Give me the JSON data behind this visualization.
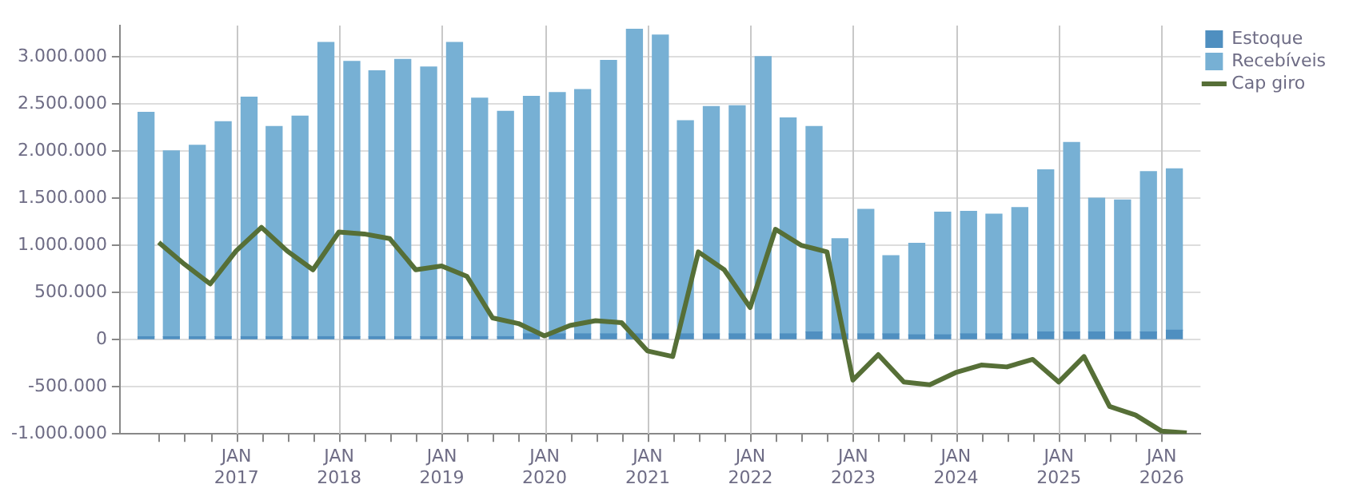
{
  "chart_data": {
    "type": "bar",
    "stacked": true,
    "legend": "top right",
    "grid": true,
    "marker": "none",
    "line_style": "solid",
    "x": [
      "2016-02-15",
      "2016-05-15",
      "2016-08-15",
      "2016-11-15",
      "2017-02-15",
      "2017-05-15",
      "2017-08-15",
      "2017-11-15",
      "2018-02-15",
      "2018-05-15",
      "2018-08-15",
      "2018-11-15",
      "2019-02-15",
      "2019-05-15",
      "2019-08-15",
      "2019-11-15",
      "2020-02-15",
      "2020-05-15",
      "2020-08-15",
      "2020-11-15",
      "2021-02-15",
      "2021-05-15",
      "2021-08-15",
      "2021-11-15",
      "2022-02-15",
      "2022-05-15",
      "2022-08-15",
      "2022-11-15",
      "2023-02-15",
      "2023-05-15",
      "2023-08-15",
      "2023-11-15",
      "2024-02-15",
      "2024-05-15",
      "2024-08-15",
      "2024-11-15",
      "2025-02-15",
      "2025-05-15",
      "2025-08-15",
      "2025-11-15",
      "2026-02-15"
    ],
    "xlim": [
      "2016-01-01",
      "2026-04-01"
    ],
    "xticks": [
      {
        "value": "2016-04-01",
        "label": null
      },
      {
        "value": "2016-07-01",
        "label": null
      },
      {
        "value": "2016-10-01",
        "label": null
      },
      {
        "value": "2017-01-01",
        "label": "JAN 2017"
      },
      {
        "value": "2017-04-01",
        "label": null
      },
      {
        "value": "2017-07-01",
        "label": null
      },
      {
        "value": "2017-10-01",
        "label": null
      },
      {
        "value": "2018-01-01",
        "label": "JAN 2018"
      },
      {
        "value": "2018-04-01",
        "label": null
      },
      {
        "value": "2018-07-01",
        "label": null
      },
      {
        "value": "2018-10-01",
        "label": null
      },
      {
        "value": "2019-01-01",
        "label": "JAN 2019"
      },
      {
        "value": "2019-04-01",
        "label": null
      },
      {
        "value": "2019-07-01",
        "label": null
      },
      {
        "value": "2019-10-01",
        "label": null
      },
      {
        "value": "2020-01-01",
        "label": "JAN 2020"
      },
      {
        "value": "2020-04-01",
        "label": null
      },
      {
        "value": "2020-07-01",
        "label": null
      },
      {
        "value": "2020-10-01",
        "label": null
      },
      {
        "value": "2021-01-01",
        "label": "JAN 2021"
      },
      {
        "value": "2021-04-01",
        "label": null
      },
      {
        "value": "2021-07-01",
        "label": null
      },
      {
        "value": "2021-10-01",
        "label": null
      },
      {
        "value": "2022-01-01",
        "label": "JAN 2022"
      },
      {
        "value": "2022-04-01",
        "label": null
      },
      {
        "value": "2022-07-01",
        "label": null
      },
      {
        "value": "2022-10-01",
        "label": null
      },
      {
        "value": "2023-01-01",
        "label": "JAN 2023"
      },
      {
        "value": "2023-04-01",
        "label": null
      },
      {
        "value": "2023-07-01",
        "label": null
      },
      {
        "value": "2023-10-01",
        "label": null
      },
      {
        "value": "2024-01-01",
        "label": "JAN 2024"
      },
      {
        "value": "2024-04-01",
        "label": null
      },
      {
        "value": "2024-07-01",
        "label": null
      },
      {
        "value": "2024-10-01",
        "label": null
      },
      {
        "value": "2025-01-01",
        "label": "JAN 2025"
      },
      {
        "value": "2025-04-01",
        "label": null
      },
      {
        "value": "2025-07-01",
        "label": null
      },
      {
        "value": "2025-10-01",
        "label": null
      },
      {
        "value": "2026-01-01",
        "label": "JAN 2026"
      }
    ],
    "ylim": [
      -1000000,
      3330000
    ],
    "yticks": [
      {
        "value": -1000000,
        "label": "-1.000.000"
      },
      {
        "value": -500000,
        "label": "-500.000"
      },
      {
        "value": 0,
        "label": "0"
      },
      {
        "value": 500000,
        "label": "500.000"
      },
      {
        "value": 1000000,
        "label": "1.000.000"
      },
      {
        "value": 1500000,
        "label": "1.500.000"
      },
      {
        "value": 2000000,
        "label": "2.000.000"
      },
      {
        "value": 2500000,
        "label": "2.500.000"
      },
      {
        "value": 3000000,
        "label": "3.000.000"
      }
    ],
    "series": [
      {
        "name": "Estoque",
        "color": "#4f8fc0",
        "values": [
          30000,
          30000,
          30000,
          30000,
          30000,
          30000,
          30000,
          30000,
          30000,
          30000,
          30000,
          30000,
          30000,
          30000,
          30000,
          60000,
          60000,
          60000,
          60000,
          60000,
          60000,
          60000,
          60000,
          60000,
          60000,
          60000,
          80000,
          60000,
          60000,
          60000,
          50000,
          50000,
          60000,
          60000,
          60000,
          80000,
          80000,
          80000,
          80000,
          80000,
          100000
        ]
      },
      {
        "name": "Recebíveis",
        "color": "#77b0d4",
        "values": [
          2380000,
          1970000,
          2030000,
          2280000,
          2540000,
          2230000,
          2340000,
          3120000,
          2920000,
          2820000,
          2940000,
          2860000,
          3120000,
          2530000,
          2390000,
          2520000,
          2560000,
          2590000,
          2900000,
          3230000,
          3170000,
          2260000,
          2410000,
          2420000,
          2940000,
          2290000,
          2180000,
          1010000,
          1320000,
          830000,
          970000,
          1300000,
          1300000,
          1270000,
          1340000,
          1720000,
          2010000,
          1420000,
          1400000,
          1700000,
          1710000
        ]
      },
      {
        "name": "Cap giro",
        "type": "line",
        "color": "#566f37",
        "x": [
          "2016-03-31",
          "2016-06-30",
          "2016-09-30",
          "2016-12-31",
          "2017-03-31",
          "2017-06-30",
          "2017-09-30",
          "2017-12-31",
          "2018-03-31",
          "2018-06-30",
          "2018-09-30",
          "2018-12-31",
          "2019-03-31",
          "2019-06-30",
          "2019-09-30",
          "2019-12-31",
          "2020-03-31",
          "2020-06-30",
          "2020-09-30",
          "2020-12-31",
          "2021-03-31",
          "2021-06-30",
          "2021-09-30",
          "2021-12-31",
          "2022-03-31",
          "2022-06-30",
          "2022-09-30",
          "2022-12-31",
          "2023-03-31",
          "2023-06-30",
          "2023-09-30",
          "2023-12-31",
          "2024-03-31",
          "2024-06-30",
          "2024-09-30",
          "2024-12-31",
          "2025-03-31",
          "2025-06-30",
          "2025-09-30",
          "2025-12-31",
          "2026-03-31"
        ],
        "values": [
          1030000,
          800000,
          590000,
          940000,
          1190000,
          940000,
          740000,
          1140000,
          1120000,
          1070000,
          740000,
          780000,
          670000,
          230000,
          170000,
          40000,
          150000,
          200000,
          180000,
          -120000,
          -180000,
          930000,
          740000,
          340000,
          1170000,
          1000000,
          930000,
          -430000,
          -160000,
          -450000,
          -480000,
          -350000,
          -270000,
          -290000,
          -210000,
          -450000,
          -180000,
          -710000,
          -800000,
          -970000,
          -990000
        ]
      }
    ]
  }
}
